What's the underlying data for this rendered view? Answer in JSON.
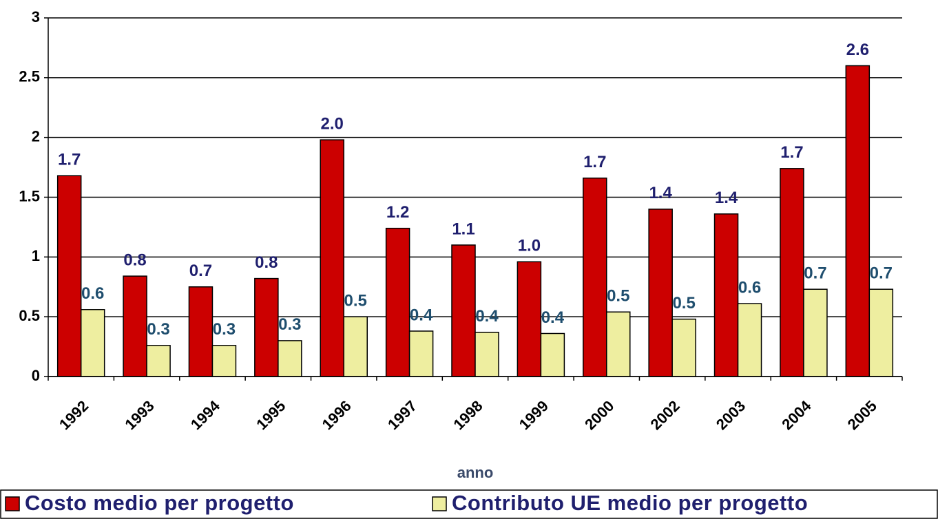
{
  "chart_data": {
    "type": "bar",
    "x_label": "anno",
    "categories": [
      "1992",
      "1993",
      "1994",
      "1995",
      "1996",
      "1997",
      "1998",
      "1999",
      "2000",
      "2002",
      "2003",
      "2004",
      "2005"
    ],
    "series": [
      {
        "name": "Costo medio per progetto",
        "color": "#cc0000",
        "values": [
          1.68,
          0.84,
          0.75,
          0.82,
          1.98,
          1.24,
          1.1,
          0.96,
          1.66,
          1.4,
          1.36,
          1.74,
          2.6
        ],
        "value_labels": [
          "1.7",
          "0.8",
          "0.7",
          "0.8",
          "2.0",
          "1.2",
          "1.1",
          "1.0",
          "1.7",
          "1.4",
          "1.4",
          "1.7",
          "2.6"
        ],
        "label_color": "#1f1f6e"
      },
      {
        "name": "Contributo UE medio per progetto",
        "color": "#eeeea0",
        "values": [
          0.56,
          0.26,
          0.26,
          0.3,
          0.5,
          0.38,
          0.37,
          0.36,
          0.54,
          0.48,
          0.61,
          0.73,
          0.73
        ],
        "value_labels": [
          "0.6",
          "0.3",
          "0.3",
          "0.3",
          "0.5",
          "0.4",
          "0.4",
          "0.4",
          "0.5",
          "0.5",
          "0.6",
          "0.7",
          "0.7"
        ],
        "label_color": "#1f4e6e"
      }
    ],
    "ylim": [
      0,
      3
    ],
    "yticks": [
      0,
      0.5,
      1,
      1.5,
      2,
      2.5,
      3
    ],
    "grid": true,
    "legend": "bottom"
  }
}
